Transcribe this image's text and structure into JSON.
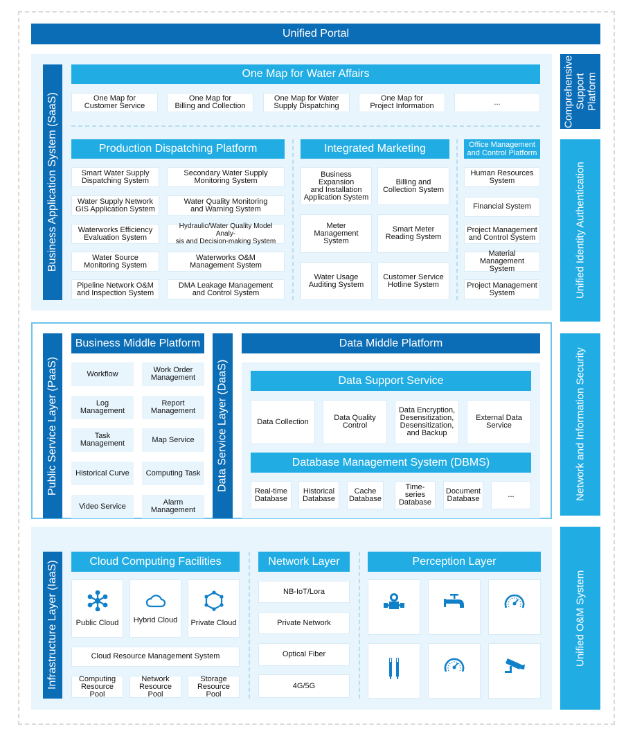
{
  "colors": {
    "dark_blue": "#0b6db6",
    "light_blue": "#21ade4",
    "panel_bg": "#e8f5fd",
    "border": "#6cc4ec"
  },
  "portal": {
    "title": "Unified Portal"
  },
  "saas": {
    "label": "Business Application System (SaaS)",
    "one_map": {
      "title": "One Map for Water Affairs",
      "items": [
        "One Map for\nCustomer Service",
        "One Map for\nBilling and Collection",
        "One Map for Water\nSupply Dispatching",
        "One Map for\nProject Information",
        "..."
      ]
    },
    "production": {
      "title": "Production Dispatching Platform",
      "items": [
        "Smart Water Supply\nDispatching System",
        "Secondary Water Supply\nMonitoring System",
        "Water Supply Network\nGIS Application System",
        "Water Quality Monitoring\nand Warning System",
        "Waterworks Efficiency\nEvaluation System",
        "Hydraulic/Water Quality Model Analy-\nsis and Decision-making System",
        "Water Source\nMonitoring System",
        "Waterworks O&M\nManagement System",
        "Pipeline Network O&M\nand Inspection System",
        "DMA Leakage Management\nand Control System"
      ]
    },
    "marketing": {
      "title": "Integrated Marketing",
      "items": [
        "Business Expansion\nand Installation\nApplication System",
        "Billing and\nCollection System",
        "Meter\nManagement\nSystem",
        "Smart Meter\nReading System",
        "Water Usage\nAuditing System",
        "Customer Service\nHotline System"
      ]
    },
    "office": {
      "title": "Office Management\nand Control Platform",
      "items": [
        "Human Resources\nSystem",
        "Financial System",
        "Project Management\nand Control System",
        "Material Management\nSystem",
        "Project Management\nSystem"
      ]
    }
  },
  "paas": {
    "label": "Public Service Layer (PaaS)",
    "business_middle": {
      "title": "Business Middle Platform",
      "items": [
        "Workflow",
        "Work Order\nManagement",
        "Log Management",
        "Report\nManagement",
        "Task Management",
        "Map Service",
        "Historical Curve",
        "Computing Task",
        "Video Service",
        "Alarm\nManagement"
      ]
    }
  },
  "daas": {
    "label": "Data Service Layer (DaaS)",
    "data_middle": {
      "title": "Data Middle Platform"
    },
    "support": {
      "title": "Data Support Service",
      "items": [
        "Data Collection",
        "Data Quality\nControl",
        "Data Encryption,\nDesensitization,\nDesensitization,\nand Backup",
        "External Data\nService"
      ]
    },
    "dbms": {
      "title": "Database Management System (DBMS)",
      "items": [
        "Real-time\nDatabase",
        "Historical\nDatabase",
        "Cache\nDatabase",
        "Time-series\nDatabase",
        "Document\nDatabase",
        "..."
      ]
    }
  },
  "iaas": {
    "label": "Infrastructure Layer (IaaS)",
    "cloud": {
      "title": "Cloud Computing Facilities",
      "items": [
        {
          "label": "Public Cloud",
          "icon": "network-hub-icon"
        },
        {
          "label": "Hybrid Cloud",
          "icon": "cloud-icon"
        },
        {
          "label": "Private Cloud",
          "icon": "hexagon-nodes-icon"
        }
      ],
      "management": "Cloud Resource Management System",
      "pools": [
        "Computing\nResource Pool",
        "Network\nResource Pool",
        "Storage\nResource Pool"
      ]
    },
    "network": {
      "title": "Network Layer",
      "items": [
        "NB-IoT/Lora",
        "Private Network",
        "Optical Fiber",
        "4G/5G"
      ]
    },
    "perception": {
      "title": "Perception Layer",
      "icons": [
        "water-meter-icon",
        "faucet-icon",
        "gauge-icon",
        "thermometer-probes-icon",
        "pressure-gauge-icon",
        "cctv-camera-icon"
      ]
    }
  },
  "right": {
    "support_platform": "Comprehensive\nSupport Platform",
    "identity": "Unified Identity Authentication",
    "security": "Network and Information Security",
    "om": "Unified O&M System"
  }
}
